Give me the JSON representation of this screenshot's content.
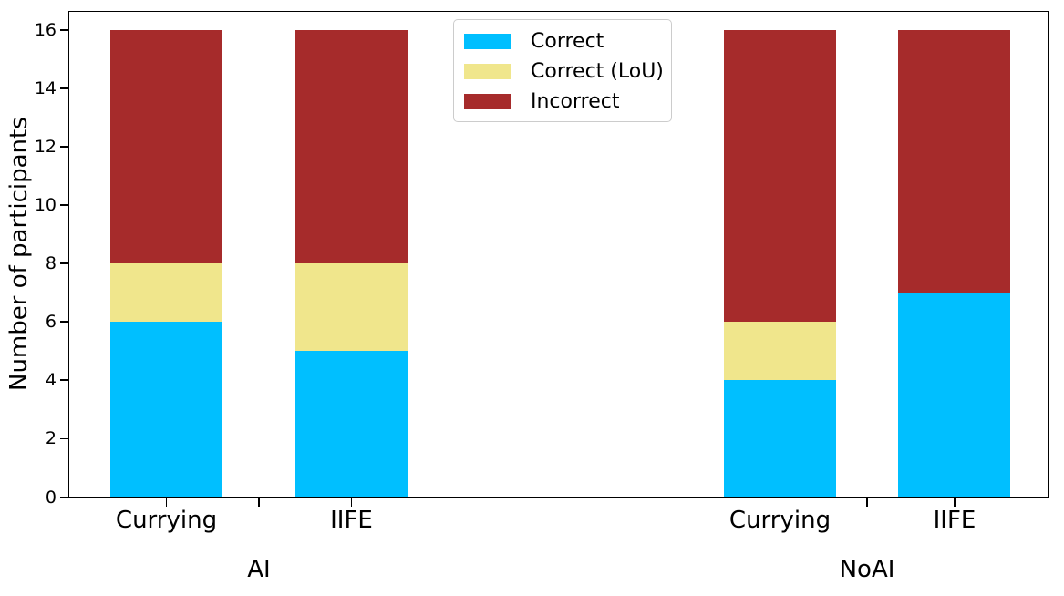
{
  "chart_data": {
    "type": "bar",
    "stacked": true,
    "title": "",
    "xlabel": "",
    "ylabel": "Number of participants",
    "ylim": [
      0,
      16.65
    ],
    "yticks": [
      0,
      2,
      4,
      6,
      8,
      10,
      12,
      14,
      16
    ],
    "grid": false,
    "groups": [
      {
        "label": "AI",
        "categories": [
          "Currying",
          "IIFE"
        ]
      },
      {
        "label": "NoAI",
        "categories": [
          "Currying",
          "IIFE"
        ]
      }
    ],
    "bar_labels": [
      "Currying",
      "IIFE",
      "Currying",
      "IIFE"
    ],
    "series": [
      {
        "name": "Correct",
        "color": "#00BFFF",
        "values": [
          6,
          5,
          4,
          7
        ]
      },
      {
        "name": "Correct (LoU)",
        "color": "#F0E68C",
        "values": [
          2,
          3,
          2,
          0
        ]
      },
      {
        "name": "Incorrect",
        "color": "#A62B2B",
        "values": [
          8,
          8,
          10,
          9
        ]
      }
    ],
    "legend": {
      "position": "upper center",
      "entries": [
        "Correct",
        "Correct (LoU)",
        "Incorrect"
      ]
    }
  }
}
